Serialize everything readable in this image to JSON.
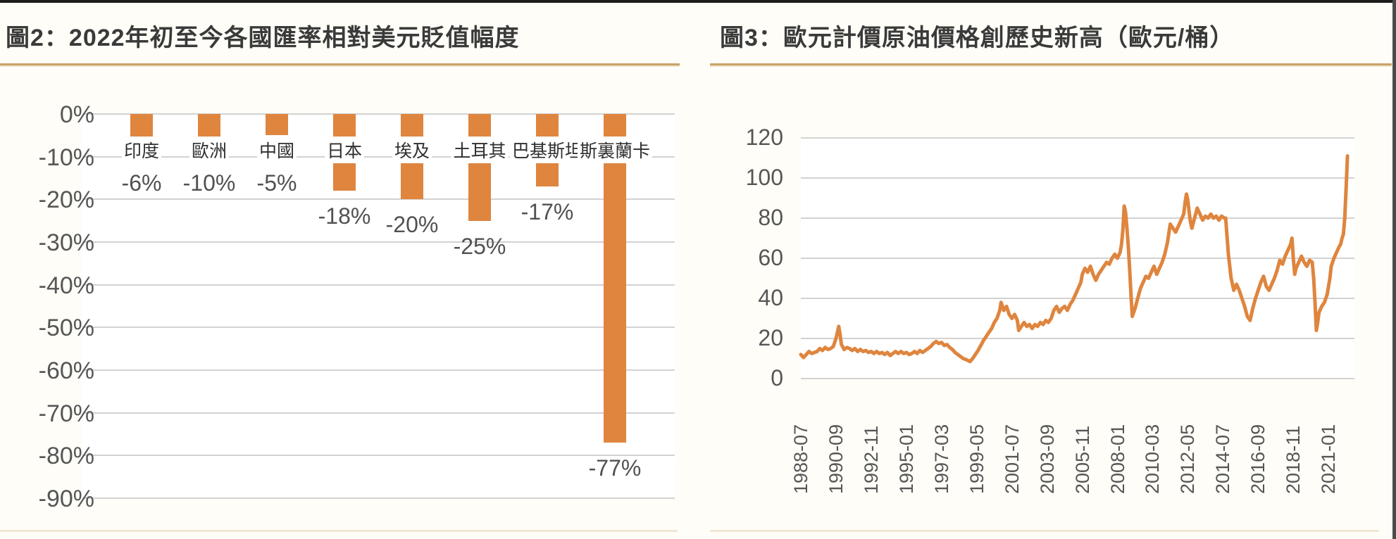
{
  "palette": {
    "orange": "#DF853E",
    "rule_tan": "#C8A265",
    "grid_gray": "#D2D2D2",
    "title_gray": "#3A3A3A",
    "tick_gray": "#565656",
    "background": "#FFFDF7"
  },
  "figure2": {
    "title": "圖2：2022年初至今各國匯率相對美元貶值幅度"
  },
  "figure3": {
    "title": "圖3：歐元計價原油價格創歷史新高（歐元/桶）"
  },
  "chart_data": [
    {
      "type": "bar",
      "title": "圖2：2022年初至今各國匯率相對美元貶值幅度",
      "categories": [
        "印度",
        "歐洲",
        "中國",
        "日本",
        "埃及",
        "土耳其",
        "巴基斯坦",
        "斯裏蘭卡"
      ],
      "values": [
        -6,
        -10,
        -5,
        -18,
        -20,
        -25,
        -17,
        -77
      ],
      "value_labels": [
        "-6%",
        "-10%",
        "-5%",
        "-18%",
        "-20%",
        "-25%",
        "-17%",
        "-77%"
      ],
      "y_ticks": [
        "0%",
        "-10%",
        "-20%",
        "-30%",
        "-40%",
        "-50%",
        "-60%",
        "-70%",
        "-80%",
        "-90%"
      ],
      "ylim": [
        -90,
        0
      ],
      "xlabel": "",
      "ylabel": "",
      "grid": true,
      "legend": "none",
      "bar_color": "#DF853E"
    },
    {
      "type": "line",
      "title": "圖3：歐元計價原油價格創歷史新高（歐元/桶）",
      "unit": "歐元/桶",
      "ylim": [
        0,
        120
      ],
      "y_ticks": [
        0,
        20,
        40,
        60,
        80,
        100,
        120
      ],
      "x_tick_labels": [
        "1988-07",
        "1990-09",
        "1992-11",
        "1995-01",
        "1997-03",
        "1999-05",
        "2001-07",
        "2003-09",
        "2005-11",
        "2008-01",
        "2010-03",
        "2012-05",
        "2014-07",
        "2016-09",
        "2018-11",
        "2021-01"
      ],
      "x_tick_months": [
        0,
        26,
        52,
        78,
        104,
        130,
        156,
        182,
        208,
        234,
        260,
        286,
        312,
        338,
        364,
        390
      ],
      "x_start": "1988-07",
      "x_months_span": 405,
      "grid": true,
      "legend": "none",
      "series": [
        {
          "name": "歐元計價原油價格",
          "color": "#DF853E",
          "points": [
            [
              0,
              12
            ],
            [
              2,
              10.5
            ],
            [
              4,
              12
            ],
            [
              6,
              13.5
            ],
            [
              8,
              12.5
            ],
            [
              10,
              13
            ],
            [
              12,
              13.5
            ],
            [
              14,
              15
            ],
            [
              16,
              14
            ],
            [
              18,
              15.5
            ],
            [
              20,
              14.5
            ],
            [
              22,
              15
            ],
            [
              24,
              16
            ],
            [
              26,
              20
            ],
            [
              28,
              26
            ],
            [
              29,
              22
            ],
            [
              30,
              17
            ],
            [
              32,
              14.5
            ],
            [
              34,
              15.5
            ],
            [
              36,
              15
            ],
            [
              38,
              14
            ],
            [
              40,
              15
            ],
            [
              42,
              13.5
            ],
            [
              44,
              14.5
            ],
            [
              46,
              13.5
            ],
            [
              48,
              14
            ],
            [
              50,
              13
            ],
            [
              52,
              13.5
            ],
            [
              54,
              12.5
            ],
            [
              56,
              13.5
            ],
            [
              58,
              12.5
            ],
            [
              60,
              13
            ],
            [
              62,
              12
            ],
            [
              64,
              13
            ],
            [
              66,
              11.5
            ],
            [
              68,
              12.5
            ],
            [
              70,
              13.5
            ],
            [
              72,
              12.5
            ],
            [
              74,
              13.5
            ],
            [
              76,
              12.5
            ],
            [
              78,
              13
            ],
            [
              80,
              12
            ],
            [
              82,
              12.5
            ],
            [
              84,
              13.5
            ],
            [
              86,
              12.5
            ],
            [
              88,
              14
            ],
            [
              90,
              13
            ],
            [
              92,
              14
            ],
            [
              94,
              15
            ],
            [
              96,
              16
            ],
            [
              98,
              17.5
            ],
            [
              100,
              18.5
            ],
            [
              102,
              17.5
            ],
            [
              104,
              18
            ],
            [
              106,
              16.5
            ],
            [
              108,
              17
            ],
            [
              110,
              15.5
            ],
            [
              112,
              14.5
            ],
            [
              114,
              13
            ],
            [
              116,
              12
            ],
            [
              118,
              11
            ],
            [
              120,
              10
            ],
            [
              122,
              9.5
            ],
            [
              125,
              8.5
            ],
            [
              127,
              10
            ],
            [
              129,
              12
            ],
            [
              131,
              14
            ],
            [
              133,
              16.5
            ],
            [
              135,
              19
            ],
            [
              137,
              21
            ],
            [
              139,
              23
            ],
            [
              141,
              25
            ],
            [
              143,
              28
            ],
            [
              145,
              30
            ],
            [
              147,
              34
            ],
            [
              148,
              38
            ],
            [
              150,
              34
            ],
            [
              152,
              36
            ],
            [
              154,
              32
            ],
            [
              156,
              30
            ],
            [
              158,
              32
            ],
            [
              160,
              29
            ],
            [
              161,
              24
            ],
            [
              163,
              26
            ],
            [
              165,
              28
            ],
            [
              167,
              26
            ],
            [
              169,
              27
            ],
            [
              171,
              25
            ],
            [
              173,
              27
            ],
            [
              175,
              26
            ],
            [
              177,
              28
            ],
            [
              179,
              27
            ],
            [
              181,
              29
            ],
            [
              183,
              28
            ],
            [
              185,
              30
            ],
            [
              187,
              34
            ],
            [
              189,
              36
            ],
            [
              191,
              33
            ],
            [
              193,
              35
            ],
            [
              195,
              36
            ],
            [
              197,
              34
            ],
            [
              199,
              37
            ],
            [
              201,
              39
            ],
            [
              203,
              42
            ],
            [
              205,
              45
            ],
            [
              207,
              48
            ],
            [
              208,
              52
            ],
            [
              210,
              55
            ],
            [
              212,
              53
            ],
            [
              214,
              56
            ],
            [
              216,
              52
            ],
            [
              218,
              49
            ],
            [
              220,
              52
            ],
            [
              222,
              54
            ],
            [
              224,
              56
            ],
            [
              226,
              58
            ],
            [
              228,
              57
            ],
            [
              230,
              60
            ],
            [
              232,
              62
            ],
            [
              234,
              60
            ],
            [
              236,
              63
            ],
            [
              237,
              67
            ],
            [
              238,
              74
            ],
            [
              239,
              86
            ],
            [
              240,
              83
            ],
            [
              241,
              75
            ],
            [
              242,
              66
            ],
            [
              243,
              55
            ],
            [
              244,
              42
            ],
            [
              245,
              31
            ],
            [
              247,
              35
            ],
            [
              249,
              40
            ],
            [
              251,
              45
            ],
            [
              253,
              48
            ],
            [
              255,
              51
            ],
            [
              257,
              50
            ],
            [
              259,
              53
            ],
            [
              261,
              56
            ],
            [
              263,
              52
            ],
            [
              265,
              55
            ],
            [
              267,
              58
            ],
            [
              269,
              62
            ],
            [
              271,
              68
            ],
            [
              273,
              77
            ],
            [
              275,
              75
            ],
            [
              277,
              73
            ],
            [
              279,
              76
            ],
            [
              281,
              79
            ],
            [
              283,
              82
            ],
            [
              284,
              88
            ],
            [
              285,
              92
            ],
            [
              286,
              89
            ],
            [
              287,
              83
            ],
            [
              288,
              78
            ],
            [
              289,
              75
            ],
            [
              291,
              80
            ],
            [
              293,
              85
            ],
            [
              295,
              82
            ],
            [
              297,
              79
            ],
            [
              299,
              81
            ],
            [
              301,
              80
            ],
            [
              303,
              82
            ],
            [
              305,
              80
            ],
            [
              307,
              81
            ],
            [
              309,
              79
            ],
            [
              311,
              81
            ],
            [
              313,
              80
            ],
            [
              314,
              80
            ],
            [
              316,
              62
            ],
            [
              318,
              50
            ],
            [
              320,
              44
            ],
            [
              322,
              47
            ],
            [
              324,
              44
            ],
            [
              326,
              40
            ],
            [
              328,
              36
            ],
            [
              330,
              31
            ],
            [
              332,
              29
            ],
            [
              334,
              35
            ],
            [
              336,
              40
            ],
            [
              338,
              44
            ],
            [
              340,
              48
            ],
            [
              342,
              51
            ],
            [
              344,
              46
            ],
            [
              346,
              44
            ],
            [
              348,
              47
            ],
            [
              350,
              50
            ],
            [
              352,
              54
            ],
            [
              354,
              59
            ],
            [
              356,
              57
            ],
            [
              358,
              61
            ],
            [
              360,
              64
            ],
            [
              362,
              67
            ],
            [
              363,
              70
            ],
            [
              364,
              60
            ],
            [
              365,
              52
            ],
            [
              366,
              55
            ],
            [
              368,
              58
            ],
            [
              370,
              61
            ],
            [
              372,
              58
            ],
            [
              374,
              56
            ],
            [
              376,
              59
            ],
            [
              378,
              58
            ],
            [
              379,
              50
            ],
            [
              380,
              38
            ],
            [
              381,
              24
            ],
            [
              382,
              28
            ],
            [
              383,
              33
            ],
            [
              385,
              36
            ],
            [
              387,
              38
            ],
            [
              389,
              42
            ],
            [
              391,
              50
            ],
            [
              392,
              56
            ],
            [
              394,
              60
            ],
            [
              396,
              63
            ],
            [
              398,
              66
            ],
            [
              399,
              67
            ],
            [
              400,
              70
            ],
            [
              401,
              72
            ],
            [
              402,
              80
            ],
            [
              403,
              95
            ],
            [
              404,
              111
            ]
          ]
        }
      ]
    }
  ]
}
